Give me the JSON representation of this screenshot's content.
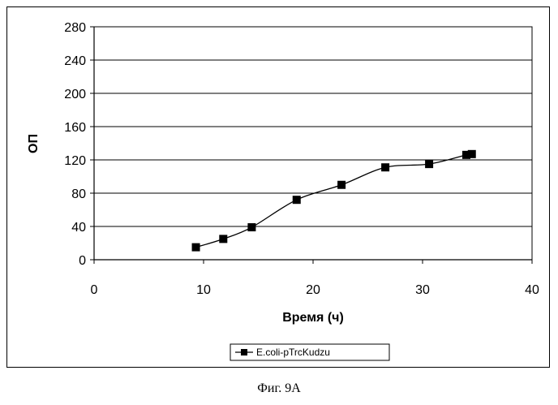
{
  "chart_data": {
    "type": "line",
    "title": "",
    "xlabel": "Время (ч)",
    "ylabel": "ОП",
    "xlim": [
      0,
      40
    ],
    "ylim": [
      0,
      280
    ],
    "x_ticks": [
      0,
      10,
      20,
      30,
      40
    ],
    "y_ticks": [
      0,
      40,
      80,
      120,
      160,
      200,
      240,
      280
    ],
    "grid": "horizontal",
    "legend_position": "bottom",
    "series": [
      {
        "name": "E.coli-pTrcKudzu",
        "color": "#000000",
        "marker": "square",
        "smooth": true,
        "x": [
          9.3,
          11.8,
          14.4,
          18.5,
          22.6,
          26.6,
          30.6,
          34.0,
          34.5
        ],
        "y": [
          15,
          25,
          39,
          72,
          90,
          111,
          115,
          126,
          127
        ]
      }
    ]
  },
  "caption": "Фиг. 9А"
}
